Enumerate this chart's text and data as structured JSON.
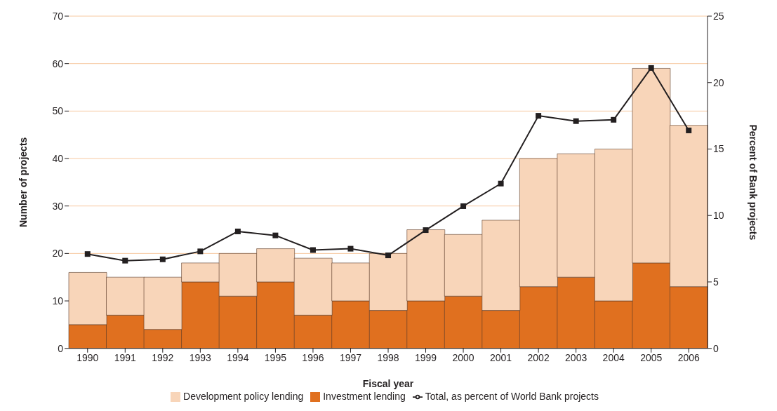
{
  "chart_data": {
    "type": "bar",
    "stacked": true,
    "xlabel": "Fiscal year",
    "ylabel": "Number of projects",
    "y2label": "Percent of Bank projects",
    "categories": [
      "1990",
      "1991",
      "1992",
      "1993",
      "1994",
      "1995",
      "1996",
      "1997",
      "1998",
      "1999",
      "2000",
      "2001",
      "2002",
      "2003",
      "2004",
      "2005",
      "2006"
    ],
    "series": [
      {
        "name": "Investment lending",
        "color": "#e0701f",
        "values": [
          5,
          7,
          4,
          14,
          11,
          14,
          7,
          10,
          8,
          10,
          11,
          8,
          13,
          15,
          10,
          18,
          13
        ]
      },
      {
        "name": "Development policy lending",
        "color": "#f8d5b9",
        "values": [
          11,
          8,
          11,
          4,
          9,
          7,
          12,
          8,
          12,
          15,
          13,
          19,
          27,
          26,
          32,
          41,
          34
        ]
      },
      {
        "name": "Total, as percent of World Bank projects",
        "type": "line",
        "axis": "y2",
        "color": "#231f20",
        "marker": "square",
        "values": [
          7.1,
          6.6,
          6.7,
          7.3,
          8.8,
          8.5,
          7.4,
          7.5,
          7.0,
          8.9,
          10.7,
          12.4,
          17.5,
          17.1,
          17.2,
          21.1,
          16.4
        ]
      }
    ],
    "ylim": [
      0,
      70
    ],
    "yticks": [
      0,
      10,
      20,
      30,
      40,
      50,
      60,
      70
    ],
    "y2lim": [
      0,
      25
    ],
    "y2ticks": [
      0,
      5,
      10,
      15,
      20,
      25
    ],
    "grid": "y",
    "legend": "bottom"
  }
}
